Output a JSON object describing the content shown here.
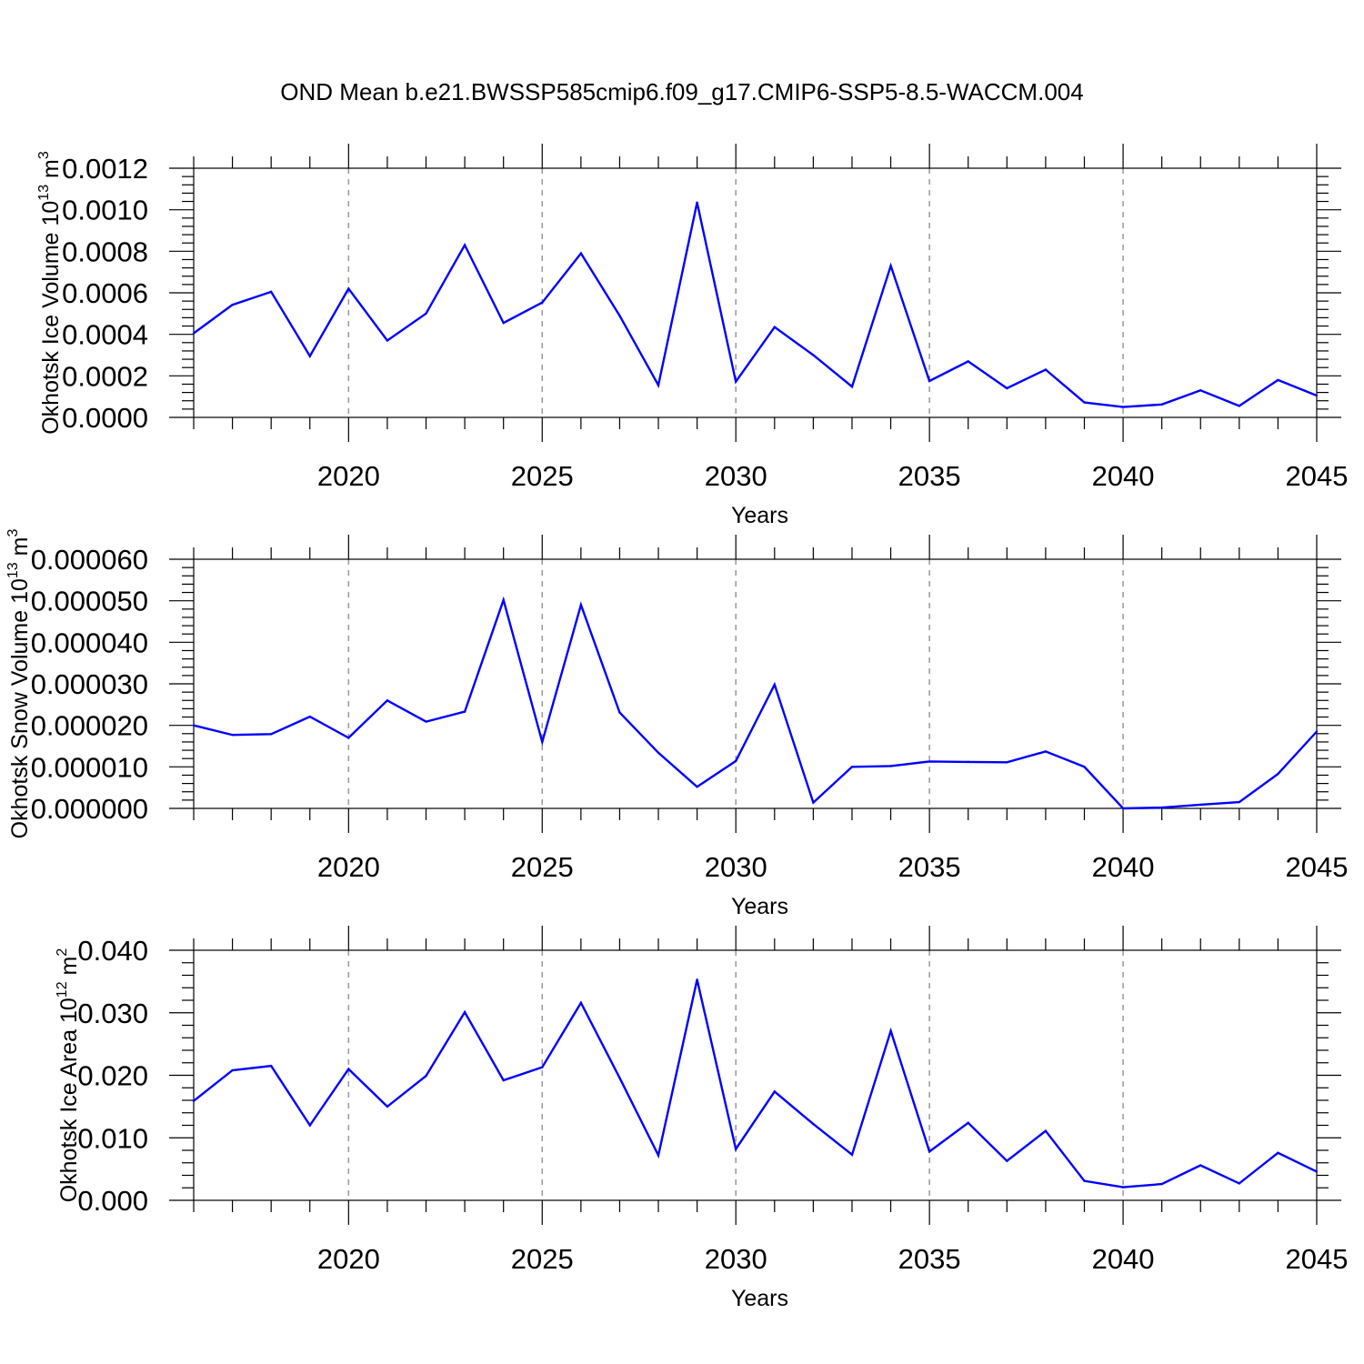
{
  "figure": {
    "title": "OND Mean b.e21.BWSSP585cmip6.f09_g17.CMIP6-SSP5-8.5-WACCM.004",
    "line_color": "#0000ff",
    "grid_color": "#999999"
  },
  "chart_data": [
    {
      "type": "line",
      "ylabel": "Okhotsk Ice Volume 10",
      "ylabel_exp": "13",
      "ylabel_unit": " m",
      "ylabel_unit_exp": "3",
      "xlabel": "Years",
      "xlim": [
        2016,
        2045
      ],
      "ylim": [
        0,
        0.0012
      ],
      "xticks": [
        2020,
        2025,
        2030,
        2035,
        2040,
        2045
      ],
      "yticks": [
        "0.0000",
        "0.0002",
        "0.0004",
        "0.0006",
        "0.0008",
        "0.0010",
        "0.0012"
      ],
      "ytick_values": [
        0,
        0.0002,
        0.0004,
        0.0006,
        0.0008,
        0.001,
        0.0012
      ],
      "yminor_step": 4e-05,
      "grid": "vertical dashed at major x ticks",
      "x": [
        2016,
        2017,
        2018,
        2019,
        2020,
        2021,
        2022,
        2023,
        2024,
        2025,
        2026,
        2027,
        2028,
        2029,
        2030,
        2031,
        2032,
        2033,
        2034,
        2035,
        2036,
        2037,
        2038,
        2039,
        2040,
        2041,
        2042,
        2043,
        2044,
        2045
      ],
      "y": [
        0.000405,
        0.000542,
        0.000605,
        0.000295,
        0.00062,
        0.00037,
        0.0005,
        0.00083,
        0.000455,
        0.000553,
        0.00079,
        0.00049,
        0.000155,
        0.001035,
        0.000172,
        0.000435,
        0.0003,
        0.000148,
        0.00073,
        0.000175,
        0.00027,
        0.00014,
        0.00023,
        7.2e-05,
        5e-05,
        6.2e-05,
        0.00013,
        5.5e-05,
        0.00018,
        0.000105
      ]
    },
    {
      "type": "line",
      "ylabel": "Okhotsk Snow Volume 10",
      "ylabel_exp": "13",
      "ylabel_unit": " m",
      "ylabel_unit_exp": "3",
      "xlabel": "Years",
      "xlim": [
        2016,
        2045
      ],
      "ylim": [
        0,
        6e-05
      ],
      "xticks": [
        2020,
        2025,
        2030,
        2035,
        2040,
        2045
      ],
      "yticks": [
        "0.000000",
        "0.000010",
        "0.000020",
        "0.000030",
        "0.000040",
        "0.000050",
        "0.000060"
      ],
      "ytick_values": [
        0,
        1e-05,
        2e-05,
        3e-05,
        4e-05,
        5e-05,
        6e-05
      ],
      "yminor_step": 2e-06,
      "grid": "vertical dashed at major x ticks",
      "x": [
        2016,
        2017,
        2018,
        2019,
        2020,
        2021,
        2022,
        2023,
        2024,
        2025,
        2026,
        2027,
        2028,
        2029,
        2030,
        2031,
        2032,
        2033,
        2034,
        2035,
        2036,
        2037,
        2038,
        2039,
        2040,
        2041,
        2042,
        2043,
        2044,
        2045
      ],
      "y": [
        2e-05,
        1.77e-05,
        1.79e-05,
        2.21e-05,
        1.7e-05,
        2.6e-05,
        2.09e-05,
        2.33e-05,
        5.02e-05,
        1.6e-05,
        4.9e-05,
        2.31e-05,
        1.34e-05,
        5.2e-06,
        1.14e-05,
        2.98e-05,
        1.4e-06,
        1e-05,
        1.02e-05,
        1.13e-05,
        1.12e-05,
        1.11e-05,
        1.37e-05,
        1e-05,
        0.0,
        2e-07,
        9e-07,
        1.5e-06,
        8.3e-06,
        1.85e-05
      ]
    },
    {
      "type": "line",
      "ylabel": "Okhotsk Ice Area 10",
      "ylabel_exp": "12",
      "ylabel_unit": " m",
      "ylabel_unit_exp": "2",
      "xlabel": "Years",
      "xlim": [
        2016,
        2045
      ],
      "ylim": [
        0,
        0.04
      ],
      "xticks": [
        2020,
        2025,
        2030,
        2035,
        2040,
        2045
      ],
      "yticks": [
        "0.000",
        "0.010",
        "0.020",
        "0.030",
        "0.040"
      ],
      "ytick_values": [
        0,
        0.01,
        0.02,
        0.03,
        0.04
      ],
      "yminor_step": 0.002,
      "grid": "vertical dashed at major x ticks",
      "x": [
        2016,
        2017,
        2018,
        2019,
        2020,
        2021,
        2022,
        2023,
        2024,
        2025,
        2026,
        2027,
        2028,
        2029,
        2030,
        2031,
        2032,
        2033,
        2034,
        2035,
        2036,
        2037,
        2038,
        2039,
        2040,
        2041,
        2042,
        2043,
        2044,
        2045
      ],
      "y": [
        0.0159,
        0.0208,
        0.0215,
        0.012,
        0.021,
        0.015,
        0.0199,
        0.0301,
        0.0192,
        0.0213,
        0.0316,
        0.0196,
        0.0072,
        0.0353,
        0.0082,
        0.0174,
        0.0122,
        0.0073,
        0.0271,
        0.0078,
        0.0124,
        0.0063,
        0.0111,
        0.0031,
        0.0021,
        0.0026,
        0.0056,
        0.0027,
        0.0076,
        0.0046
      ]
    }
  ]
}
